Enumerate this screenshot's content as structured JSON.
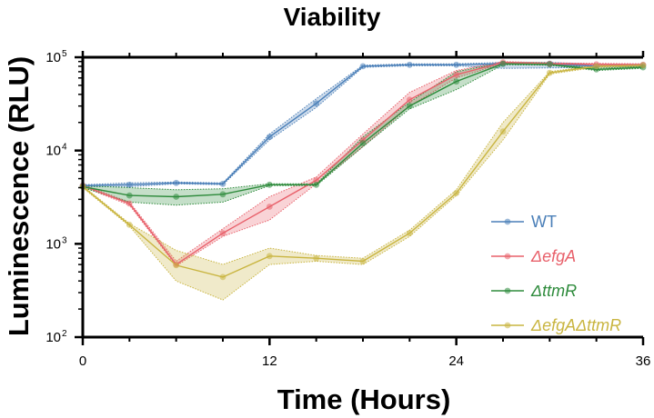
{
  "chart_data": {
    "type": "line",
    "title": "Viability",
    "xlabel": "Time (Hours)",
    "ylabel": "Luminescence  (RLU)",
    "yscale": "log",
    "xlim": [
      0,
      36
    ],
    "ylim": [
      100,
      100000
    ],
    "xticks": [
      0,
      12,
      24,
      36
    ],
    "xtick_labels": [
      "0",
      "12",
      "24",
      "36"
    ],
    "yticks": [
      100,
      1000,
      10000,
      100000
    ],
    "ytick_labels": [
      {
        "base": "10",
        "exp": "2"
      },
      {
        "base": "10",
        "exp": "3"
      },
      {
        "base": "10",
        "exp": "4"
      },
      {
        "base": "10",
        "exp": "5"
      }
    ],
    "legend_position": "right-center",
    "series": [
      {
        "name": "WT",
        "italic": false,
        "color": "#4a7fb8",
        "x": [
          0,
          3,
          6,
          9,
          12,
          15,
          18,
          21,
          24,
          27,
          30,
          33,
          36
        ],
        "y": [
          4200,
          4300,
          4500,
          4400,
          14000,
          32000,
          80000,
          83000,
          83000,
          85000,
          85000,
          80000,
          82000
        ],
        "lower": [
          4100,
          4100,
          4400,
          4300,
          13000,
          29000,
          78000,
          81000,
          81000,
          76000,
          77000,
          78000,
          80000
        ],
        "upper": [
          4300,
          4500,
          4600,
          4500,
          15000,
          36000,
          82000,
          85000,
          85000,
          88000,
          88000,
          84000,
          84000
        ]
      },
      {
        "name": "ΔefgA",
        "italic": true,
        "color": "#e8606a",
        "x": [
          0,
          3,
          6,
          9,
          12,
          15,
          18,
          21,
          24,
          27,
          30,
          33,
          36
        ],
        "y": [
          4200,
          2700,
          600,
          1300,
          2500,
          4800,
          13000,
          35000,
          65000,
          88000,
          85000,
          84000,
          83000
        ],
        "lower": [
          4100,
          2600,
          580,
          1200,
          1800,
          4400,
          11000,
          30000,
          60000,
          86000,
          83000,
          82000,
          81000
        ],
        "upper": [
          4300,
          2800,
          650,
          1450,
          3200,
          5200,
          15000,
          42000,
          72000,
          90000,
          87000,
          86000,
          85000
        ]
      },
      {
        "name": "ΔttmR",
        "italic": true,
        "color": "#2e8b3c",
        "x": [
          0,
          3,
          6,
          9,
          12,
          15,
          18,
          21,
          24,
          27,
          30,
          33,
          36
        ],
        "y": [
          4100,
          3300,
          3200,
          3400,
          4300,
          4300,
          12000,
          30000,
          55000,
          85000,
          84000,
          74000,
          78000
        ],
        "lower": [
          4000,
          2800,
          2600,
          2800,
          4200,
          4200,
          11000,
          28000,
          45000,
          83000,
          82000,
          72000,
          76000
        ],
        "upper": [
          4200,
          4000,
          3800,
          3900,
          4400,
          4400,
          14000,
          33000,
          70000,
          88000,
          87000,
          76000,
          80000
        ]
      },
      {
        "name": "ΔefgAΔttmR",
        "italic": true,
        "color": "#c9b540",
        "x": [
          0,
          3,
          6,
          9,
          12,
          15,
          18,
          21,
          24,
          27,
          30,
          33,
          36
        ],
        "y": [
          4100,
          1600,
          590,
          440,
          740,
          700,
          650,
          1300,
          3500,
          16000,
          68000,
          80000,
          82000
        ],
        "lower": [
          4000,
          1550,
          400,
          250,
          600,
          650,
          600,
          1200,
          3300,
          13000,
          66000,
          78000,
          80000
        ],
        "upper": [
          4200,
          1650,
          850,
          600,
          900,
          750,
          700,
          1400,
          3800,
          20000,
          70000,
          82000,
          84000
        ]
      }
    ]
  }
}
